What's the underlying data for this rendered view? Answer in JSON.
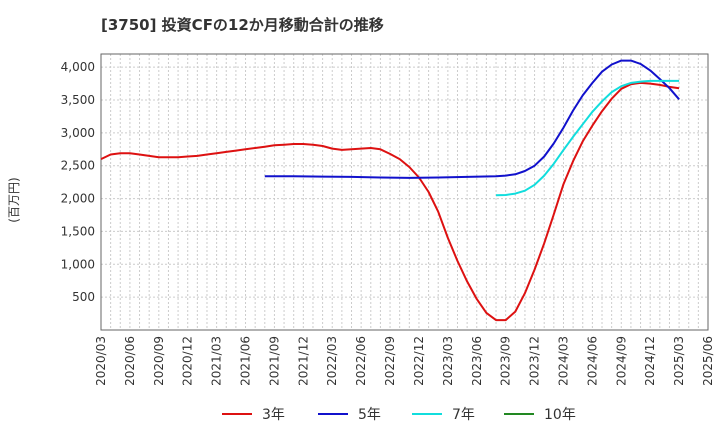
{
  "chart_data": {
    "type": "line",
    "title": "[3750]  投資CFの12か月移動合計の推移",
    "ylabel": "(百万円)",
    "xlabel": "",
    "ylim": [
      0,
      4200
    ],
    "yticks": [
      500,
      1000,
      1500,
      2000,
      2500,
      3000,
      3500,
      4000
    ],
    "ytick_labels": [
      "500",
      "1,000",
      "1,500",
      "2,000",
      "2,500",
      "3,000",
      "3,500",
      "4,000"
    ],
    "x_start": "2020-03",
    "x_end": "2025-06",
    "xtick_labels": [
      "2020/03",
      "2020/06",
      "2020/09",
      "2020/12",
      "2021/03",
      "2021/06",
      "2021/09",
      "2021/12",
      "2022/03",
      "2022/06",
      "2022/09",
      "2022/12",
      "2023/03",
      "2023/06",
      "2023/09",
      "2023/12",
      "2024/03",
      "2024/06",
      "2024/09",
      "2024/12",
      "2025/03",
      "2025/06"
    ],
    "grid": true,
    "legend_position": "bottom",
    "series": [
      {
        "name": "3年",
        "color": "#dd1111",
        "points": [
          [
            "2020-03",
            2600
          ],
          [
            "2020-04",
            2670
          ],
          [
            "2020-05",
            2690
          ],
          [
            "2020-06",
            2690
          ],
          [
            "2020-07",
            2670
          ],
          [
            "2020-08",
            2650
          ],
          [
            "2020-09",
            2630
          ],
          [
            "2020-10",
            2630
          ],
          [
            "2020-11",
            2630
          ],
          [
            "2020-12",
            2640
          ],
          [
            "2021-01",
            2650
          ],
          [
            "2021-02",
            2670
          ],
          [
            "2021-03",
            2690
          ],
          [
            "2021-04",
            2710
          ],
          [
            "2021-05",
            2730
          ],
          [
            "2021-06",
            2750
          ],
          [
            "2021-07",
            2770
          ],
          [
            "2021-08",
            2790
          ],
          [
            "2021-09",
            2810
          ],
          [
            "2021-10",
            2820
          ],
          [
            "2021-11",
            2830
          ],
          [
            "2021-12",
            2830
          ],
          [
            "2022-01",
            2820
          ],
          [
            "2022-02",
            2800
          ],
          [
            "2022-03",
            2760
          ],
          [
            "2022-04",
            2740
          ],
          [
            "2022-05",
            2750
          ],
          [
            "2022-06",
            2760
          ],
          [
            "2022-07",
            2770
          ],
          [
            "2022-08",
            2750
          ],
          [
            "2022-09",
            2680
          ],
          [
            "2022-10",
            2600
          ],
          [
            "2022-11",
            2480
          ],
          [
            "2022-12",
            2320
          ],
          [
            "2023-01",
            2100
          ],
          [
            "2023-02",
            1800
          ],
          [
            "2023-03",
            1400
          ],
          [
            "2023-04",
            1050
          ],
          [
            "2023-05",
            740
          ],
          [
            "2023-06",
            470
          ],
          [
            "2023-07",
            260
          ],
          [
            "2023-08",
            150
          ],
          [
            "2023-09",
            150
          ],
          [
            "2023-10",
            280
          ],
          [
            "2023-11",
            560
          ],
          [
            "2023-12",
            920
          ],
          [
            "2024-01",
            1320
          ],
          [
            "2024-02",
            1760
          ],
          [
            "2024-03",
            2220
          ],
          [
            "2024-04",
            2570
          ],
          [
            "2024-05",
            2870
          ],
          [
            "2024-06",
            3110
          ],
          [
            "2024-07",
            3330
          ],
          [
            "2024-08",
            3520
          ],
          [
            "2024-09",
            3670
          ],
          [
            "2024-10",
            3740
          ],
          [
            "2024-11",
            3760
          ],
          [
            "2024-12",
            3750
          ],
          [
            "2025-01",
            3730
          ],
          [
            "2025-02",
            3700
          ],
          [
            "2025-03",
            3680
          ]
        ]
      },
      {
        "name": "5年",
        "color": "#1111cc",
        "points": [
          [
            "2021-08",
            2340
          ],
          [
            "2021-11",
            2340
          ],
          [
            "2022-02",
            2335
          ],
          [
            "2022-05",
            2330
          ],
          [
            "2022-08",
            2320
          ],
          [
            "2022-11",
            2315
          ],
          [
            "2023-02",
            2320
          ],
          [
            "2023-05",
            2330
          ],
          [
            "2023-08",
            2340
          ],
          [
            "2023-09",
            2350
          ],
          [
            "2023-10",
            2370
          ],
          [
            "2023-11",
            2420
          ],
          [
            "2023-12",
            2500
          ],
          [
            "2024-01",
            2640
          ],
          [
            "2024-02",
            2840
          ],
          [
            "2024-03",
            3080
          ],
          [
            "2024-04",
            3340
          ],
          [
            "2024-05",
            3570
          ],
          [
            "2024-06",
            3760
          ],
          [
            "2024-07",
            3930
          ],
          [
            "2024-08",
            4040
          ],
          [
            "2024-09",
            4100
          ],
          [
            "2024-10",
            4100
          ],
          [
            "2024-11",
            4050
          ],
          [
            "2024-12",
            3950
          ],
          [
            "2025-01",
            3820
          ],
          [
            "2025-02",
            3680
          ],
          [
            "2025-03",
            3510
          ]
        ]
      },
      {
        "name": "7年",
        "color": "#11dddd",
        "points": [
          [
            "2023-08",
            2050
          ],
          [
            "2023-09",
            2055
          ],
          [
            "2023-10",
            2075
          ],
          [
            "2023-11",
            2120
          ],
          [
            "2023-12",
            2210
          ],
          [
            "2024-01",
            2350
          ],
          [
            "2024-02",
            2530
          ],
          [
            "2024-03",
            2740
          ],
          [
            "2024-04",
            2940
          ],
          [
            "2024-05",
            3130
          ],
          [
            "2024-06",
            3320
          ],
          [
            "2024-07",
            3480
          ],
          [
            "2024-08",
            3620
          ],
          [
            "2024-09",
            3710
          ],
          [
            "2024-10",
            3760
          ],
          [
            "2024-11",
            3780
          ],
          [
            "2024-12",
            3790
          ],
          [
            "2025-01",
            3790
          ],
          [
            "2025-02",
            3790
          ],
          [
            "2025-03",
            3790
          ]
        ]
      },
      {
        "name": "10年",
        "color": "#228822",
        "points": []
      }
    ]
  }
}
